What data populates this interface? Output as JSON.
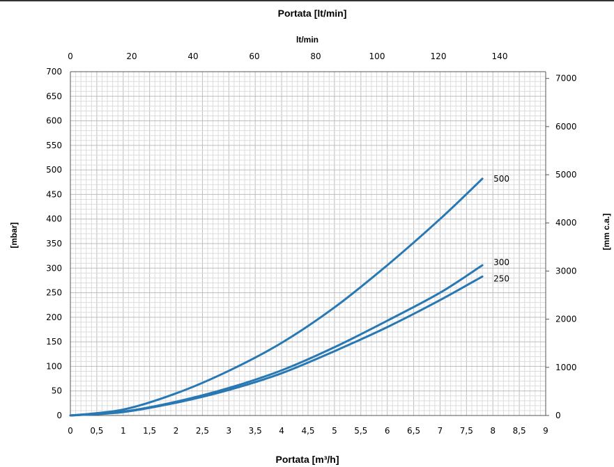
{
  "chart_data": {
    "type": "line",
    "title": "Portata [lt/min]",
    "top_axis": {
      "label": "lt/min",
      "range": [
        0,
        155
      ],
      "ticks": [
        "0",
        "20",
        "40",
        "60",
        "80",
        "100",
        "120",
        "140"
      ],
      "tick_values": [
        0,
        20,
        40,
        60,
        80,
        100,
        120,
        140
      ]
    },
    "xlabel": "Portata [m³/h]",
    "xlim": [
      0,
      9
    ],
    "x_ticks": [
      "0",
      "0,5",
      "1",
      "1,5",
      "2",
      "2,5",
      "3",
      "3,5",
      "4",
      "4,5",
      "5",
      "5,5",
      "6",
      "6,5",
      "7",
      "7,5",
      "8",
      "8,5",
      "9"
    ],
    "ylabel": "[mbar]",
    "ylim": [
      0,
      700
    ],
    "y_ticks": [
      "0",
      "50",
      "100",
      "150",
      "200",
      "250",
      "300",
      "350",
      "400",
      "450",
      "500",
      "550",
      "600",
      "650",
      "700"
    ],
    "y2label": "[mm c.a.]",
    "y2lim": [
      0,
      7140
    ],
    "y2_ticks": [
      "0",
      "1000",
      "2000",
      "3000",
      "4000",
      "5000",
      "6000",
      "7000"
    ],
    "y2_tick_values": [
      0,
      1000,
      2000,
      3000,
      4000,
      5000,
      6000,
      7000
    ],
    "grid": true,
    "line_color": "#2878b4",
    "series": [
      {
        "name": "500",
        "x": [
          0,
          1,
          2,
          3,
          4,
          5,
          6,
          7,
          7.8
        ],
        "y": [
          0,
          12,
          45,
          91,
          148,
          220,
          306,
          400,
          482
        ]
      },
      {
        "name": "300",
        "x": [
          0,
          1,
          2,
          3,
          4,
          5,
          6,
          7,
          7.8
        ],
        "y": [
          0,
          8,
          28,
          56,
          92,
          139,
          193,
          250,
          306
        ]
      },
      {
        "name": "250",
        "x": [
          0,
          1,
          2,
          3,
          4,
          5,
          6,
          7,
          7.8
        ],
        "y": [
          0,
          7,
          26,
          52,
          86,
          131,
          180,
          235,
          283
        ]
      }
    ]
  }
}
